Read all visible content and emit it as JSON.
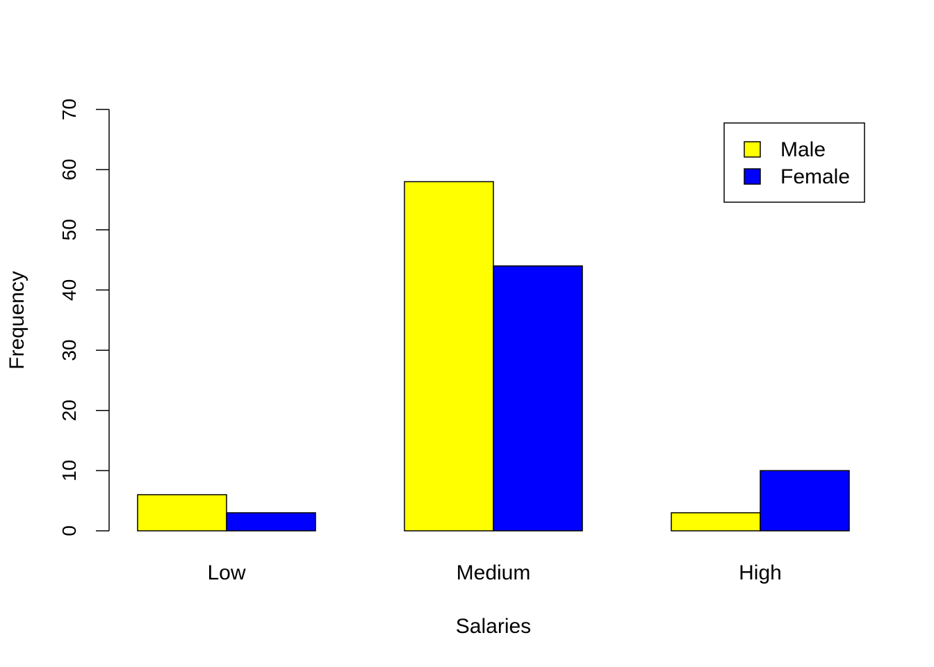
{
  "chart_data": {
    "type": "bar",
    "title": "",
    "xlabel": "Salaries",
    "ylabel": "Frequency",
    "ylim": [
      0,
      70
    ],
    "yticks": [
      0,
      10,
      20,
      30,
      40,
      50,
      60,
      70
    ],
    "categories": [
      "Low",
      "Medium",
      "High"
    ],
    "series": [
      {
        "name": "Male",
        "color": "#ffff00",
        "values": [
          6,
          58,
          3
        ]
      },
      {
        "name": "Female",
        "color": "#0000ff",
        "values": [
          3,
          44,
          10
        ]
      }
    ],
    "grid": false,
    "legend": {
      "placement": "top-right"
    }
  }
}
